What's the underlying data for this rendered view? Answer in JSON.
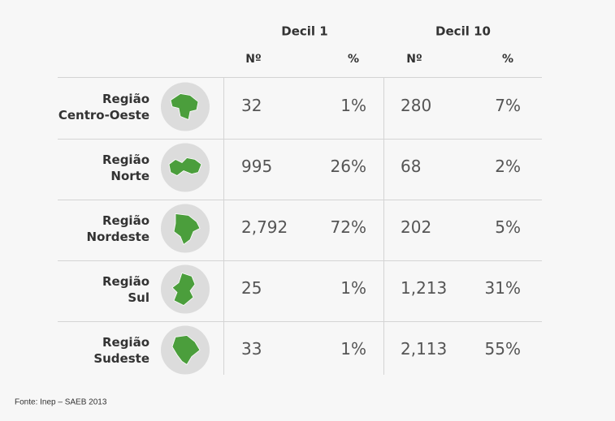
{
  "table": {
    "groups": [
      "Decil 1",
      "Decil 10"
    ],
    "subheaders": [
      "Nº",
      "%",
      "Nº",
      "%"
    ],
    "rows": [
      {
        "label": [
          "Região",
          "Centro-Oeste"
        ],
        "cells": [
          "32",
          "1%",
          "280",
          "7%"
        ]
      },
      {
        "label": [
          "Região",
          "Norte"
        ],
        "cells": [
          "995",
          "26%",
          "68",
          "2%"
        ]
      },
      {
        "label": [
          "Região",
          "Nordeste"
        ],
        "cells": [
          "2,792",
          "72%",
          "202",
          "5%"
        ]
      },
      {
        "label": [
          "Região",
          "Sul"
        ],
        "cells": [
          "25",
          "1%",
          "1,213",
          "31%"
        ]
      },
      {
        "label": [
          "Região",
          "Sudeste"
        ],
        "cells": [
          "33",
          "1%",
          "2,113",
          "55%"
        ]
      }
    ]
  },
  "footer": {
    "source": "Fonte: Inep – SAEB 2013"
  }
}
